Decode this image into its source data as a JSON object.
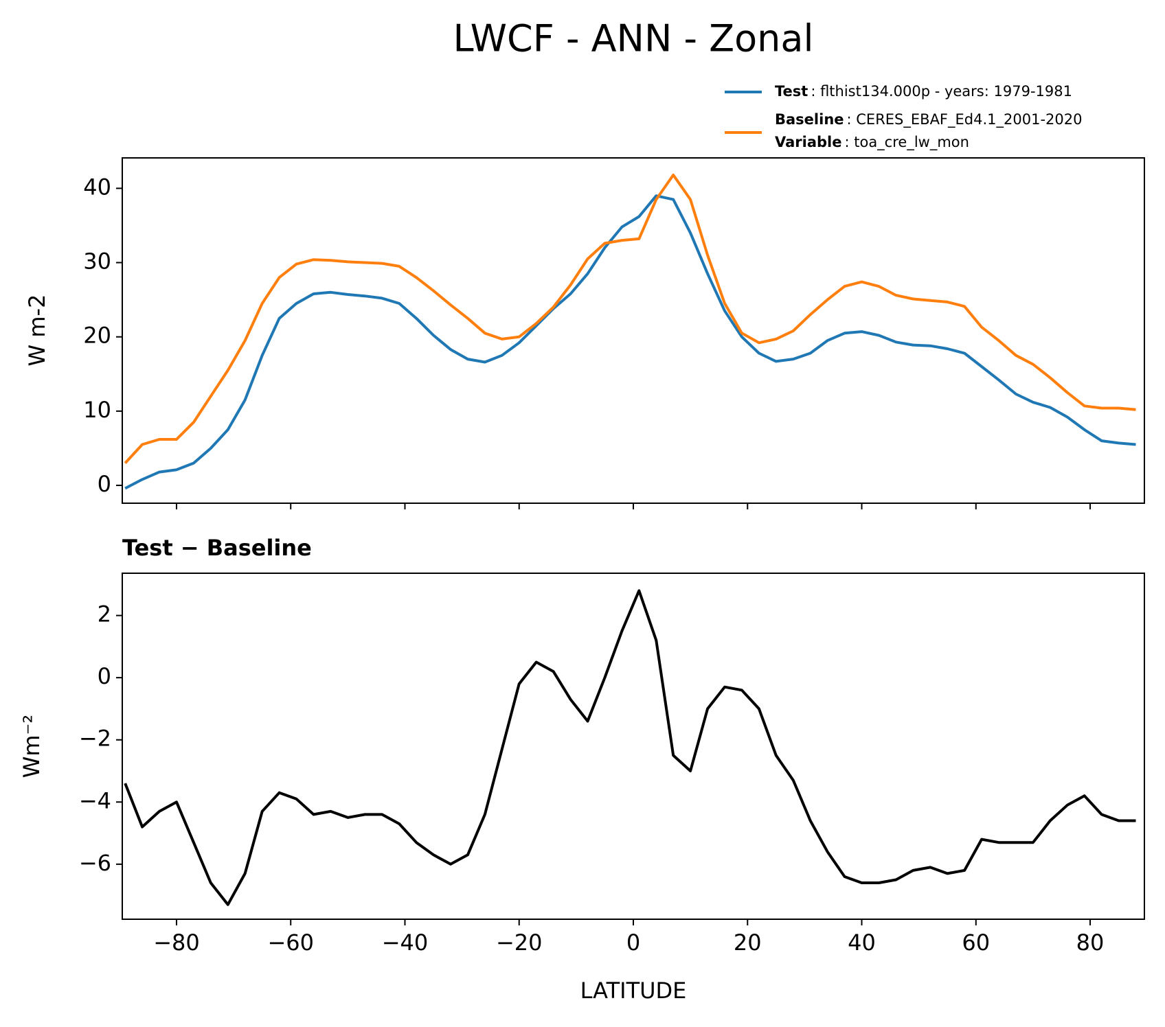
{
  "chart_data": [
    {
      "type": "line",
      "title": "LWCF - ANN - Zonal",
      "ylabel": "W m-2",
      "x": [
        -89,
        -86,
        -83,
        -80,
        -77,
        -74,
        -71,
        -68,
        -65,
        -62,
        -59,
        -56,
        -53,
        -50,
        -47,
        -44,
        -41,
        -38,
        -35,
        -32,
        -29,
        -26,
        -23,
        -20,
        -17,
        -14,
        -11,
        -8,
        -5,
        -2,
        1,
        4,
        7,
        10,
        13,
        16,
        19,
        22,
        25,
        28,
        31,
        34,
        37,
        40,
        43,
        46,
        49,
        52,
        55,
        58,
        61,
        64,
        67,
        70,
        73,
        76,
        79,
        82,
        85,
        88
      ],
      "series": [
        {
          "name": "Test",
          "description": ": flthist134.000p - years: 1979-1981",
          "color": "#1f77b4",
          "values": [
            -0.4,
            0.8,
            1.8,
            2.1,
            3.0,
            5.0,
            7.5,
            11.5,
            17.5,
            22.5,
            24.5,
            25.8,
            26.0,
            25.7,
            25.5,
            25.2,
            24.5,
            22.5,
            20.2,
            18.3,
            17.0,
            16.6,
            17.5,
            19.2,
            21.5,
            23.8,
            25.8,
            28.5,
            32.0,
            34.8,
            36.2,
            39.0,
            38.5,
            34.0,
            28.5,
            23.5,
            20.0,
            17.8,
            16.7,
            17.0,
            17.8,
            19.5,
            20.5,
            20.7,
            20.2,
            19.3,
            18.9,
            18.8,
            18.4,
            17.8,
            16.0,
            14.2,
            12.3,
            11.2,
            10.5,
            9.2,
            7.5,
            6.0,
            5.7,
            5.5
          ]
        },
        {
          "name": "Baseline",
          "description": ": CERES_EBAF_Ed4.1_2001-2020",
          "variable_label": "Variable",
          "variable": ": toa_cre_lw_mon",
          "color": "#ff7f0e",
          "values": [
            3.0,
            5.5,
            6.2,
            6.2,
            8.5,
            12.0,
            15.5,
            19.5,
            24.5,
            28.0,
            29.8,
            30.4,
            30.3,
            30.1,
            30.0,
            29.9,
            29.5,
            28.0,
            26.2,
            24.3,
            22.5,
            20.5,
            19.7,
            20.0,
            21.8,
            24.0,
            27.0,
            30.5,
            32.6,
            33.0,
            33.2,
            38.5,
            41.8,
            38.5,
            31.0,
            24.5,
            20.5,
            19.2,
            19.7,
            20.8,
            23.0,
            25.0,
            26.8,
            27.4,
            26.8,
            25.6,
            25.1,
            24.9,
            24.7,
            24.1,
            21.3,
            19.5,
            17.5,
            16.3,
            14.5,
            12.5,
            10.7,
            10.4,
            10.4,
            10.2
          ]
        }
      ],
      "xlim": [
        -89.5,
        89.5
      ],
      "ylim": [
        -2.4,
        44.1
      ],
      "yticks": [
        0,
        10,
        20,
        30,
        40
      ]
    },
    {
      "type": "line",
      "title": "Test − Baseline",
      "ylabel": "Wm⁻²",
      "xlabel": "LATITUDE",
      "x": [
        -89,
        -86,
        -83,
        -80,
        -77,
        -74,
        -71,
        -68,
        -65,
        -62,
        -59,
        -56,
        -53,
        -50,
        -47,
        -44,
        -41,
        -38,
        -35,
        -32,
        -29,
        -26,
        -23,
        -20,
        -17,
        -14,
        -11,
        -8,
        -5,
        -2,
        1,
        4,
        7,
        10,
        13,
        16,
        19,
        22,
        25,
        28,
        31,
        34,
        37,
        40,
        43,
        46,
        49,
        52,
        55,
        58,
        61,
        64,
        67,
        70,
        73,
        76,
        79,
        82,
        85,
        88
      ],
      "series": [
        {
          "color": "#000000",
          "values": [
            -3.4,
            -4.8,
            -4.3,
            -4.0,
            -5.3,
            -6.6,
            -7.3,
            -6.3,
            -4.3,
            -3.7,
            -3.9,
            -4.4,
            -4.3,
            -4.5,
            -4.4,
            -4.4,
            -4.7,
            -5.3,
            -5.7,
            -6.0,
            -5.7,
            -4.4,
            -2.3,
            -0.2,
            0.5,
            0.2,
            -0.7,
            -1.4,
            0.0,
            1.5,
            2.8,
            1.2,
            -2.5,
            -3.0,
            -1.0,
            -0.3,
            -0.4,
            -1.0,
            -2.5,
            -3.3,
            -4.6,
            -5.6,
            -6.4,
            -6.6,
            -6.6,
            -6.5,
            -6.2,
            -6.1,
            -6.3,
            -6.2,
            -5.2,
            -5.3,
            -5.3,
            -5.3,
            -4.6,
            -4.1,
            -3.8,
            -4.4,
            -4.6,
            -4.6
          ]
        }
      ],
      "xlim": [
        -89.5,
        89.5
      ],
      "ylim": [
        -7.77,
        3.36
      ],
      "yticks": [
        {
          "value": -6,
          "label": "−6"
        },
        {
          "value": -4,
          "label": "−4"
        },
        {
          "value": -2,
          "label": "−2"
        },
        0,
        2
      ],
      "xticks": [
        {
          "value": -80,
          "label": "−80"
        },
        {
          "value": -60,
          "label": "−60"
        },
        {
          "value": -40,
          "label": "−40"
        },
        {
          "value": -20,
          "label": "−20"
        },
        0,
        20,
        40,
        60,
        80
      ]
    }
  ]
}
